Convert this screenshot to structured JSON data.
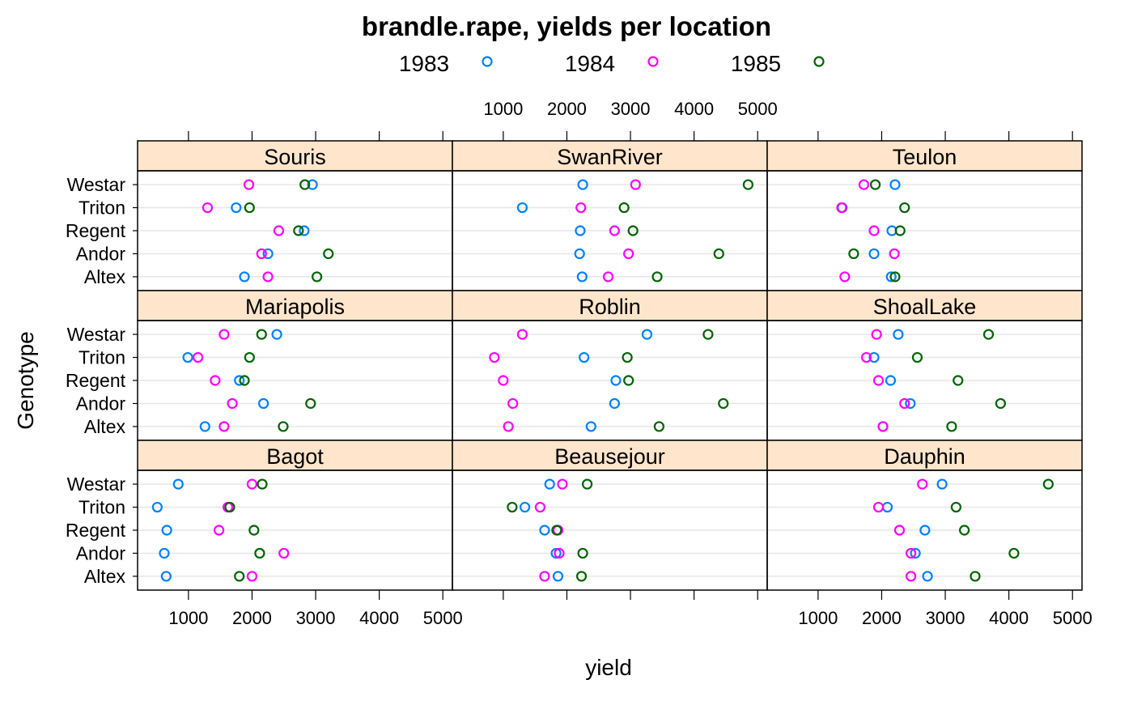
{
  "chart_data": {
    "type": "scatter",
    "title": "brandle.rape, yields per location",
    "xlabel": "yield",
    "ylabel": "Genotype",
    "xlim": [
      200,
      5150
    ],
    "x_ticks": [
      1000,
      2000,
      3000,
      4000,
      5000
    ],
    "x_tick_labels": [
      "1000",
      "2000",
      "3000",
      "4000",
      "5000"
    ],
    "categories": [
      "Altex",
      "Andor",
      "Regent",
      "Triton",
      "Westar"
    ],
    "legend": {
      "position": "top",
      "items": [
        {
          "name": "1983",
          "color": "#0080ff"
        },
        {
          "name": "1984",
          "color": "#ff00ff"
        },
        {
          "name": "1985",
          "color": "#006400"
        }
      ]
    },
    "grid": "horizontal",
    "strip_color": "#ffe5cc",
    "panels": [
      {
        "name": "Souris",
        "row": 0,
        "col": 0,
        "series": [
          {
            "name": "1983",
            "values": [
              1880,
              2250,
              2820,
              1750,
              2950
            ]
          },
          {
            "name": "1984",
            "values": [
              2250,
              2150,
              2420,
              1300,
              1950
            ]
          },
          {
            "name": "1985",
            "values": [
              3020,
              3200,
              2730,
              1960,
              2830
            ]
          }
        ]
      },
      {
        "name": "SwanRiver",
        "row": 0,
        "col": 1,
        "series": [
          {
            "name": "1983",
            "values": [
              2240,
              2200,
              2210,
              1300,
              2250
            ]
          },
          {
            "name": "1984",
            "values": [
              2650,
              2970,
              2750,
              2220,
              3080
            ]
          },
          {
            "name": "1985",
            "values": [
              3420,
              4390,
              3040,
              2900,
              4850
            ]
          }
        ]
      },
      {
        "name": "Teulon",
        "row": 0,
        "col": 2,
        "series": [
          {
            "name": "1983",
            "values": [
              2150,
              1880,
              2160,
              1380,
              2210
            ]
          },
          {
            "name": "1984",
            "values": [
              1420,
              2200,
              1880,
              1370,
              1720
            ]
          },
          {
            "name": "1985",
            "values": [
              2210,
              1560,
              2290,
              2360,
              1900
            ]
          }
        ]
      },
      {
        "name": "Mariapolis",
        "row": 1,
        "col": 0,
        "series": [
          {
            "name": "1983",
            "values": [
              1260,
              2180,
              1800,
              990,
              2390
            ]
          },
          {
            "name": "1984",
            "values": [
              1560,
              1690,
              1420,
              1150,
              1560
            ]
          },
          {
            "name": "1985",
            "values": [
              2490,
              2920,
              1880,
              1960,
              2150
            ]
          }
        ]
      },
      {
        "name": "Roblin",
        "row": 1,
        "col": 1,
        "series": [
          {
            "name": "1983",
            "values": [
              2380,
              2750,
              2770,
              2270,
              3260
            ]
          },
          {
            "name": "1984",
            "values": [
              1080,
              1150,
              1000,
              860,
              1300
            ]
          },
          {
            "name": "1985",
            "values": [
              3450,
              4460,
              2970,
              2950,
              4220
            ]
          }
        ]
      },
      {
        "name": "ShoalLake",
        "row": 1,
        "col": 2,
        "series": [
          {
            "name": "1983",
            "values": [
              2020,
              2450,
              2140,
              1880,
              2260
            ]
          },
          {
            "name": "1984",
            "values": [
              2020,
              2360,
              1950,
              1760,
              1920
            ]
          },
          {
            "name": "1985",
            "values": [
              3100,
              3870,
              3200,
              2560,
              3680
            ]
          }
        ]
      },
      {
        "name": "Bagot",
        "row": 2,
        "col": 0,
        "series": [
          {
            "name": "1983",
            "values": [
              650,
              620,
              660,
              510,
              840
            ]
          },
          {
            "name": "1984",
            "values": [
              2000,
              2500,
              1480,
              1620,
              2000
            ]
          },
          {
            "name": "1985",
            "values": [
              1800,
              2120,
              2030,
              1650,
              2160
            ]
          }
        ]
      },
      {
        "name": "Beausejour",
        "row": 2,
        "col": 1,
        "series": [
          {
            "name": "1983",
            "values": [
              1860,
              1830,
              1650,
              1340,
              1730
            ]
          },
          {
            "name": "1984",
            "values": [
              1650,
              1880,
              1860,
              1580,
              1930
            ]
          },
          {
            "name": "1985",
            "values": [
              2230,
              2250,
              1840,
              1140,
              2320
            ]
          }
        ]
      },
      {
        "name": "Dauphin",
        "row": 2,
        "col": 2,
        "series": [
          {
            "name": "1983",
            "values": [
              2720,
              2530,
              2680,
              2090,
              2950
            ]
          },
          {
            "name": "1984",
            "values": [
              2460,
              2460,
              2280,
              1950,
              2640
            ]
          },
          {
            "name": "1985",
            "values": [
              3470,
              4080,
              3300,
              3170,
              4620
            ]
          }
        ]
      }
    ]
  }
}
